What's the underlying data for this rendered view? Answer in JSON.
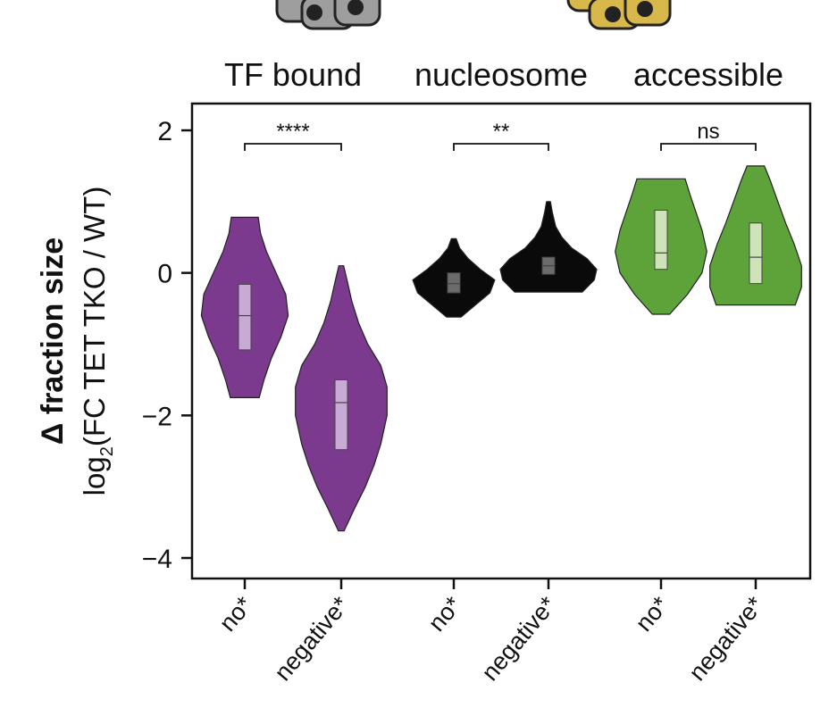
{
  "chart_data": {
    "type": "violin",
    "y_axis": {
      "label_bold": "Δ fraction size",
      "label_parts": [
        "log",
        "2",
        "(FC TET TKO / WT)"
      ],
      "ylim": [
        -4.3,
        2.3
      ],
      "ticks": [
        2,
        0,
        -2,
        -4
      ],
      "tick_labels": [
        "2",
        "0",
        "−2",
        "−4"
      ]
    },
    "groups": [
      {
        "title": "TF bound",
        "significance": "****",
        "color": "#7b3a8e",
        "box_color": "#c9a9d6",
        "violins": [
          {
            "label": "no*",
            "min": -1.75,
            "max": 0.78,
            "q1": -1.08,
            "median": -0.6,
            "q3": -0.16,
            "profile": [
              [
                -1.75,
                0.3
              ],
              [
                -1.5,
                0.4
              ],
              [
                -1.2,
                0.55
              ],
              [
                -0.9,
                0.75
              ],
              [
                -0.6,
                0.9
              ],
              [
                -0.3,
                0.85
              ],
              [
                0.0,
                0.65
              ],
              [
                0.3,
                0.45
              ],
              [
                0.55,
                0.33
              ],
              [
                0.78,
                0.28
              ]
            ]
          },
          {
            "label": "negative*",
            "min": -3.62,
            "max": 0.1,
            "q1": -2.48,
            "median": -1.82,
            "q3": -1.5,
            "profile": [
              [
                -3.62,
                0.06
              ],
              [
                -3.3,
                0.28
              ],
              [
                -3.0,
                0.5
              ],
              [
                -2.7,
                0.68
              ],
              [
                -2.4,
                0.82
              ],
              [
                -2.0,
                0.95
              ],
              [
                -1.6,
                0.95
              ],
              [
                -1.3,
                0.82
              ],
              [
                -1.0,
                0.55
              ],
              [
                -0.7,
                0.36
              ],
              [
                -0.4,
                0.22
              ],
              [
                -0.1,
                0.12
              ],
              [
                0.1,
                0.05
              ]
            ]
          }
        ]
      },
      {
        "title": "nucleosome",
        "significance": "**",
        "color": "#0a0a0a",
        "box_color": "#6b6b6b",
        "violins": [
          {
            "label": "no*",
            "min": -0.62,
            "max": 0.48,
            "q1": -0.28,
            "median": -0.15,
            "q3": 0.0,
            "profile": [
              [
                -0.62,
                0.15
              ],
              [
                -0.45,
                0.45
              ],
              [
                -0.28,
                0.75
              ],
              [
                -0.1,
                0.85
              ],
              [
                0.05,
                0.55
              ],
              [
                0.2,
                0.3
              ],
              [
                0.35,
                0.12
              ],
              [
                0.48,
                0.05
              ]
            ]
          },
          {
            "label": "negative*",
            "min": -0.27,
            "max": 1.0,
            "q1": -0.02,
            "median": 0.1,
            "q3": 0.22,
            "profile": [
              [
                -0.27,
                0.7
              ],
              [
                -0.1,
                0.95
              ],
              [
                0.05,
                1.0
              ],
              [
                0.2,
                0.8
              ],
              [
                0.35,
                0.48
              ],
              [
                0.5,
                0.28
              ],
              [
                0.65,
                0.15
              ],
              [
                0.85,
                0.08
              ],
              [
                1.0,
                0.04
              ]
            ]
          }
        ]
      },
      {
        "title": "accessible",
        "significance": "ns",
        "color": "#5ea33a",
        "box_color": "#cfe3b8",
        "violins": [
          {
            "label": "no*",
            "min": -0.58,
            "max": 1.32,
            "q1": 0.05,
            "median": 0.28,
            "q3": 0.88,
            "profile": [
              [
                -0.58,
                0.18
              ],
              [
                -0.3,
                0.55
              ],
              [
                0.0,
                0.85
              ],
              [
                0.3,
                0.95
              ],
              [
                0.6,
                0.85
              ],
              [
                0.9,
                0.7
              ],
              [
                1.1,
                0.6
              ],
              [
                1.32,
                0.5
              ]
            ]
          },
          {
            "label": "negative*",
            "min": -0.45,
            "max": 1.5,
            "q1": -0.15,
            "median": 0.22,
            "q3": 0.7,
            "profile": [
              [
                -0.45,
                0.82
              ],
              [
                -0.2,
                0.95
              ],
              [
                0.1,
                0.95
              ],
              [
                0.4,
                0.8
              ],
              [
                0.7,
                0.62
              ],
              [
                1.0,
                0.46
              ],
              [
                1.3,
                0.3
              ],
              [
                1.5,
                0.18
              ]
            ]
          }
        ]
      }
    ]
  }
}
